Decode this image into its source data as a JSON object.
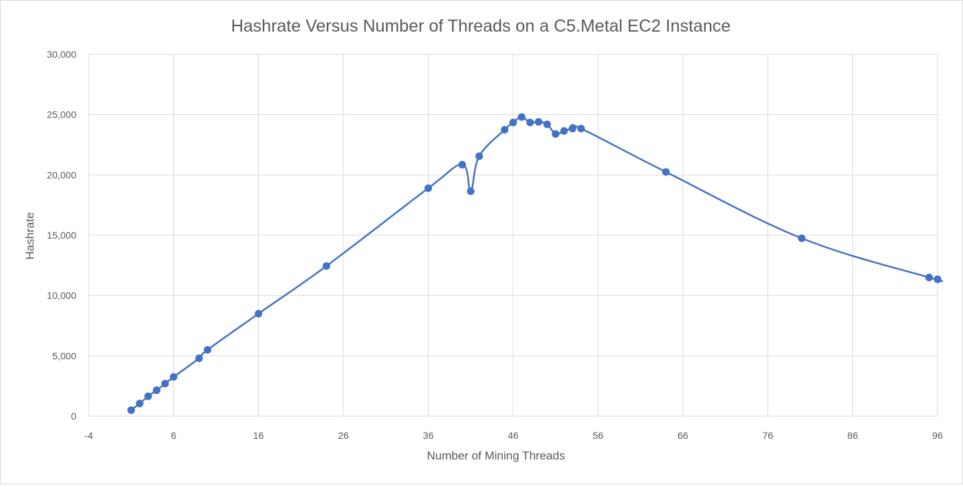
{
  "chart_data": {
    "type": "scatter",
    "title": "Hashrate Versus Number of Threads on a C5.Metal EC2 Instance",
    "xlabel": "Number of Mining Threads",
    "ylabel": "Hashrate",
    "xlim": [
      -4,
      96
    ],
    "ylim": [
      0,
      30000
    ],
    "grid": true,
    "smooth_line": true,
    "marker": "circle",
    "color": "#4472c4",
    "x_ticks": [
      -4,
      6,
      16,
      26,
      36,
      46,
      56,
      66,
      76,
      86,
      96
    ],
    "x_tick_labels": [
      "-4",
      "6",
      "16",
      "26",
      "36",
      "46",
      "56",
      "66",
      "76",
      "86",
      "96"
    ],
    "y_ticks": [
      0,
      5000,
      10000,
      15000,
      20000,
      25000,
      30000
    ],
    "y_tick_labels": [
      "0",
      "5,000",
      "10,000",
      "15,000",
      "20,000",
      "25,000",
      "30,000"
    ],
    "series": [
      {
        "name": "Hashrate",
        "x": [
          1,
          2,
          3,
          4,
          5,
          6,
          9,
          10,
          16,
          24,
          36,
          40,
          41,
          42,
          45,
          46,
          47,
          48,
          49,
          50,
          51,
          52,
          53,
          54,
          64,
          80,
          95,
          96
        ],
        "y": [
          500,
          1050,
          1650,
          2150,
          2700,
          3250,
          4800,
          5500,
          8500,
          12450,
          18900,
          20850,
          18650,
          21550,
          23750,
          24350,
          24800,
          24350,
          24400,
          24200,
          23400,
          23650,
          23850,
          23850,
          20250,
          14750,
          11500,
          11350
        ]
      }
    ]
  }
}
